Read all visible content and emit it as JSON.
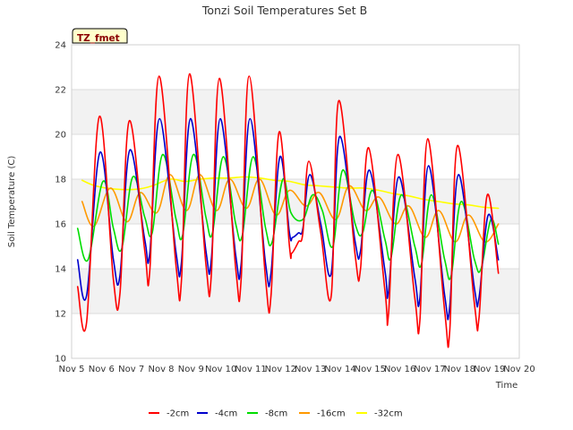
{
  "chart_data": {
    "type": "line",
    "title": "Tonzi Soil Temperatures Set B",
    "xlabel": "Time",
    "ylabel": "Soil Temperature (C)",
    "badge": "TZ_fmet",
    "ylim": [
      10,
      24
    ],
    "yticks": [
      10,
      12,
      14,
      16,
      18,
      20,
      22,
      24
    ],
    "xlim": [
      5,
      20
    ],
    "xticks": [
      {
        "v": 5,
        "label": "Nov 5"
      },
      {
        "v": 6,
        "label": "Nov 6"
      },
      {
        "v": 7,
        "label": "Nov 7"
      },
      {
        "v": 8,
        "label": "Nov 8"
      },
      {
        "v": 9,
        "label": "Nov 9"
      },
      {
        "v": 10,
        "label": "Nov 10"
      },
      {
        "v": 11,
        "label": "Nov 11"
      },
      {
        "v": 12,
        "label": "Nov 12"
      },
      {
        "v": 13,
        "label": "Nov 13"
      },
      {
        "v": 14,
        "label": "Nov 14"
      },
      {
        "v": 15,
        "label": "Nov 15"
      },
      {
        "v": 16,
        "label": "Nov 16"
      },
      {
        "v": 17,
        "label": "Nov 17"
      },
      {
        "v": 18,
        "label": "Nov 18"
      },
      {
        "v": 19,
        "label": "Nov 19"
      },
      {
        "v": 20,
        "label": "Nov 20"
      }
    ],
    "grid": "horizontal alternating bands",
    "legend_position": "bottom",
    "series": [
      {
        "name": "-2cm",
        "color": "#ff0000",
        "points": [
          [
            5.2,
            13.2
          ],
          [
            5.5,
            11.6
          ],
          [
            5.93,
            20.8
          ],
          [
            6.4,
            13.5
          ],
          [
            6.62,
            12.9
          ],
          [
            6.93,
            20.6
          ],
          [
            7.45,
            14.8
          ],
          [
            7.62,
            13.9
          ],
          [
            7.93,
            22.6
          ],
          [
            8.5,
            14.1
          ],
          [
            8.68,
            13.5
          ],
          [
            8.95,
            22.7
          ],
          [
            9.5,
            14.2
          ],
          [
            9.68,
            13.7
          ],
          [
            9.95,
            22.5
          ],
          [
            10.5,
            14.0
          ],
          [
            10.68,
            13.5
          ],
          [
            10.95,
            22.6
          ],
          [
            11.5,
            13.5
          ],
          [
            11.68,
            12.8
          ],
          [
            11.95,
            20.1
          ],
          [
            12.3,
            15.0
          ],
          [
            12.38,
            14.7
          ],
          [
            12.6,
            15.2
          ],
          [
            12.75,
            15.6
          ],
          [
            12.95,
            18.8
          ],
          [
            13.35,
            15.6
          ],
          [
            13.7,
            12.8
          ],
          [
            13.95,
            21.5
          ],
          [
            14.5,
            14.6
          ],
          [
            14.68,
            14.0
          ],
          [
            14.95,
            19.4
          ],
          [
            15.5,
            13.0
          ],
          [
            15.62,
            12.0
          ],
          [
            15.93,
            19.1
          ],
          [
            16.5,
            12.7
          ],
          [
            16.67,
            11.7
          ],
          [
            16.93,
            19.8
          ],
          [
            17.5,
            12.1
          ],
          [
            17.67,
            11.2
          ],
          [
            17.93,
            19.5
          ],
          [
            18.5,
            12.4
          ],
          [
            18.65,
            11.8
          ],
          [
            18.93,
            17.3
          ],
          [
            19.3,
            13.8
          ]
        ]
      },
      {
        "name": "-4cm",
        "color": "#0000cc",
        "points": [
          [
            5.2,
            14.4
          ],
          [
            5.5,
            12.8
          ],
          [
            5.95,
            19.2
          ],
          [
            6.4,
            14.4
          ],
          [
            6.62,
            13.7
          ],
          [
            6.95,
            19.3
          ],
          [
            7.45,
            15.3
          ],
          [
            7.62,
            14.7
          ],
          [
            7.95,
            20.7
          ],
          [
            8.5,
            14.7
          ],
          [
            8.68,
            14.3
          ],
          [
            8.98,
            20.7
          ],
          [
            9.5,
            14.8
          ],
          [
            9.68,
            14.4
          ],
          [
            9.98,
            20.7
          ],
          [
            10.5,
            14.6
          ],
          [
            10.68,
            14.2
          ],
          [
            10.98,
            20.7
          ],
          [
            11.5,
            14.2
          ],
          [
            11.68,
            13.8
          ],
          [
            11.98,
            19.0
          ],
          [
            12.3,
            15.6
          ],
          [
            12.4,
            15.4
          ],
          [
            12.6,
            15.6
          ],
          [
            12.75,
            15.8
          ],
          [
            12.98,
            18.2
          ],
          [
            13.35,
            16.0
          ],
          [
            13.7,
            13.8
          ],
          [
            13.98,
            19.9
          ],
          [
            14.5,
            15.2
          ],
          [
            14.68,
            14.8
          ],
          [
            14.98,
            18.4
          ],
          [
            15.5,
            13.9
          ],
          [
            15.62,
            13.0
          ],
          [
            15.96,
            18.1
          ],
          [
            16.5,
            13.6
          ],
          [
            16.67,
            12.7
          ],
          [
            16.96,
            18.6
          ],
          [
            17.5,
            12.8
          ],
          [
            17.67,
            12.3
          ],
          [
            17.96,
            18.2
          ],
          [
            18.5,
            13.1
          ],
          [
            18.65,
            12.7
          ],
          [
            18.96,
            16.4
          ],
          [
            19.3,
            14.4
          ]
        ]
      },
      {
        "name": "-8cm",
        "color": "#00dd00",
        "points": [
          [
            5.2,
            15.8
          ],
          [
            5.55,
            14.4
          ],
          [
            6.05,
            17.9
          ],
          [
            6.4,
            15.8
          ],
          [
            6.68,
            14.9
          ],
          [
            7.05,
            18.1
          ],
          [
            7.45,
            16.3
          ],
          [
            7.7,
            15.6
          ],
          [
            8.05,
            19.1
          ],
          [
            8.5,
            16.2
          ],
          [
            8.72,
            15.5
          ],
          [
            9.08,
            19.1
          ],
          [
            9.5,
            16.3
          ],
          [
            9.72,
            15.6
          ],
          [
            10.08,
            19.0
          ],
          [
            10.5,
            16.0
          ],
          [
            10.72,
            15.5
          ],
          [
            11.08,
            19.0
          ],
          [
            11.5,
            15.8
          ],
          [
            11.72,
            15.2
          ],
          [
            12.08,
            18.0
          ],
          [
            12.35,
            16.5
          ],
          [
            12.75,
            16.2
          ],
          [
            13.08,
            17.3
          ],
          [
            13.4,
            16.6
          ],
          [
            13.75,
            15.0
          ],
          [
            14.08,
            18.4
          ],
          [
            14.5,
            16.0
          ],
          [
            14.75,
            15.6
          ],
          [
            15.08,
            17.5
          ],
          [
            15.5,
            15.3
          ],
          [
            15.7,
            14.5
          ],
          [
            16.05,
            17.3
          ],
          [
            16.5,
            15.0
          ],
          [
            16.72,
            14.2
          ],
          [
            17.05,
            17.3
          ],
          [
            17.5,
            14.4
          ],
          [
            17.72,
            13.7
          ],
          [
            18.05,
            17.0
          ],
          [
            18.5,
            14.4
          ],
          [
            18.72,
            14.0
          ],
          [
            19.05,
            16.2
          ],
          [
            19.3,
            15.1
          ]
        ]
      },
      {
        "name": "-16cm",
        "color": "#ff9900",
        "points": [
          [
            5.35,
            17.0
          ],
          [
            5.75,
            15.9
          ],
          [
            6.3,
            17.6
          ],
          [
            6.85,
            16.1
          ],
          [
            7.3,
            17.4
          ],
          [
            7.85,
            16.5
          ],
          [
            8.3,
            18.2
          ],
          [
            8.85,
            16.6
          ],
          [
            9.3,
            18.2
          ],
          [
            9.85,
            16.6
          ],
          [
            10.3,
            18.0
          ],
          [
            10.85,
            16.7
          ],
          [
            11.3,
            18.0
          ],
          [
            11.85,
            16.4
          ],
          [
            12.3,
            17.5
          ],
          [
            12.85,
            16.8
          ],
          [
            13.3,
            17.4
          ],
          [
            13.85,
            16.2
          ],
          [
            14.3,
            17.7
          ],
          [
            14.85,
            16.6
          ],
          [
            15.3,
            17.2
          ],
          [
            15.85,
            16.0
          ],
          [
            16.3,
            16.8
          ],
          [
            16.85,
            15.4
          ],
          [
            17.3,
            16.6
          ],
          [
            17.85,
            15.2
          ],
          [
            18.3,
            16.4
          ],
          [
            18.85,
            15.2
          ],
          [
            19.3,
            16.0
          ]
        ]
      },
      {
        "name": "-32cm",
        "color": "#ffff00",
        "points": [
          [
            5.35,
            17.95
          ],
          [
            5.8,
            17.7
          ],
          [
            6.5,
            17.55
          ],
          [
            7.2,
            17.55
          ],
          [
            7.7,
            17.7
          ],
          [
            8.3,
            18.0
          ],
          [
            8.8,
            17.9
          ],
          [
            9.3,
            18.0
          ],
          [
            9.8,
            18.05
          ],
          [
            10.3,
            18.05
          ],
          [
            10.8,
            18.1
          ],
          [
            11.3,
            18.05
          ],
          [
            11.8,
            17.95
          ],
          [
            12.3,
            17.9
          ],
          [
            12.8,
            17.75
          ],
          [
            13.3,
            17.7
          ],
          [
            13.8,
            17.65
          ],
          [
            14.3,
            17.6
          ],
          [
            14.8,
            17.6
          ],
          [
            15.3,
            17.5
          ],
          [
            15.8,
            17.35
          ],
          [
            16.3,
            17.25
          ],
          [
            16.8,
            17.1
          ],
          [
            17.3,
            17.0
          ],
          [
            17.8,
            16.9
          ],
          [
            18.3,
            16.85
          ],
          [
            18.8,
            16.75
          ],
          [
            19.3,
            16.7
          ]
        ]
      }
    ]
  }
}
